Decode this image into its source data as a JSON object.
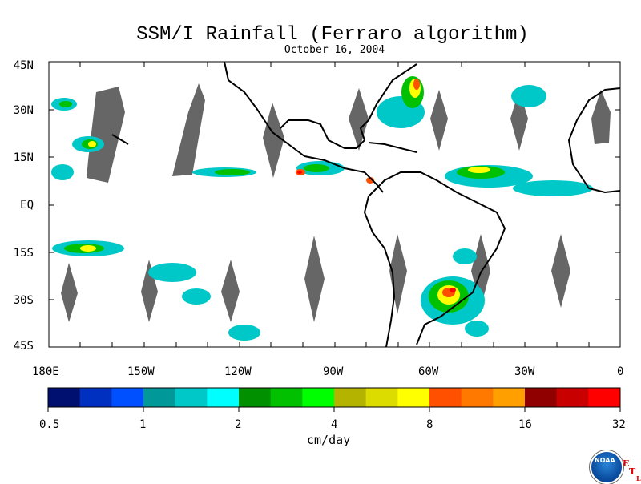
{
  "title": "SSM/I Rainfall (Ferraro algorithm)",
  "subtitle": "October 16, 2004",
  "map": {
    "lat_labels": [
      "45N",
      "30N",
      "15N",
      "EQ",
      "15S",
      "30S",
      "45S"
    ],
    "lon_labels": [
      "180E",
      "150W",
      "120W",
      "90W",
      "60W",
      "30W",
      "0"
    ],
    "lon_range": [
      -180,
      0
    ],
    "lat_range": [
      -45,
      45
    ]
  },
  "colorbar": {
    "colors": [
      "#001070",
      "#0030c0",
      "#0050ff",
      "#009898",
      "#00c8c8",
      "#00ffff",
      "#009000",
      "#00c000",
      "#00ff00",
      "#b4b400",
      "#dcdc00",
      "#ffff00",
      "#ff5000",
      "#ff7800",
      "#ffa000",
      "#900000",
      "#c80000",
      "#ff0000"
    ],
    "tick_labels": [
      "0.5",
      "1",
      "2",
      "4",
      "8",
      "16",
      "32"
    ],
    "units": "cm/day"
  },
  "logo": {
    "org": "NOAA",
    "icon": "noaa-logo-icon",
    "etl_letters": [
      "E",
      "T",
      "L"
    ]
  }
}
